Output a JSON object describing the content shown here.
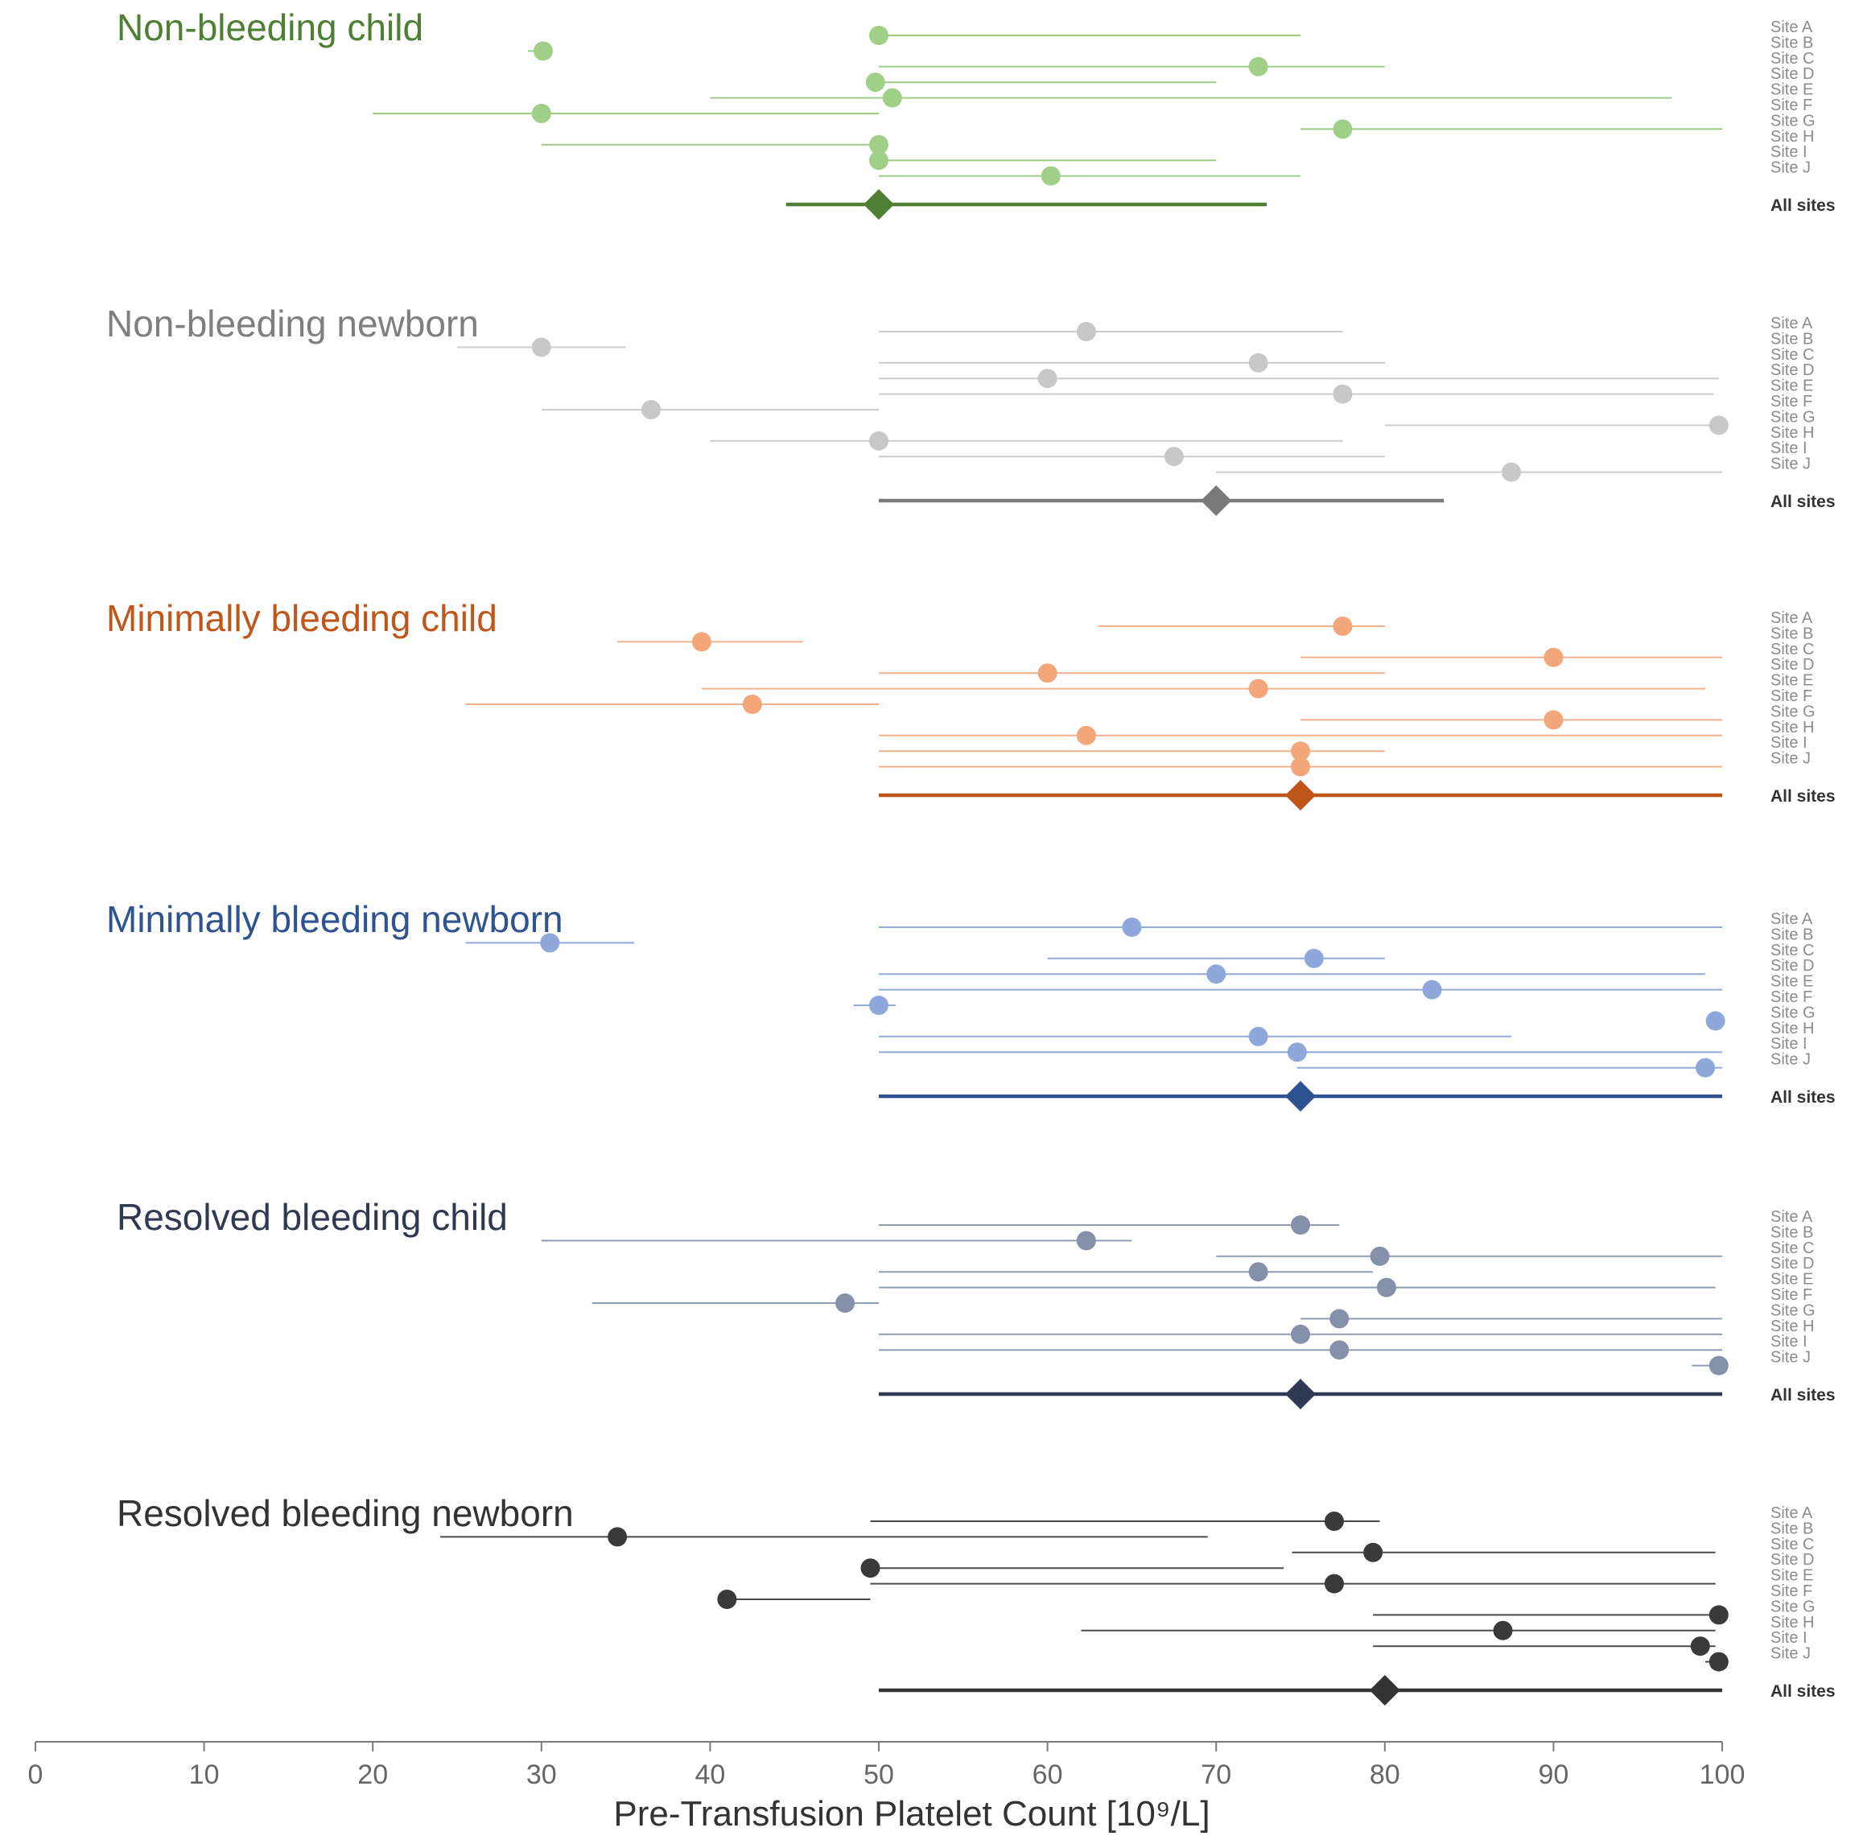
{
  "chart_data": {
    "type": "forest",
    "xlabel": "Pre-Transfusion Platelet Count [10⁹/L]",
    "xlim": [
      0,
      100
    ],
    "xticks": [
      0,
      10,
      20,
      30,
      40,
      50,
      60,
      70,
      80,
      90,
      100
    ],
    "site_labels": [
      "Site A",
      "Site B",
      "Site C",
      "Site D",
      "Site E",
      "Site F",
      "Site G",
      "Site H",
      "Site I",
      "Site J"
    ],
    "summary_label": "All sites",
    "groups": [
      {
        "title": "Non-bleeding child",
        "title_color": "#4e7f34",
        "line_color": "#9dcc85",
        "point_color": "#a0cf88",
        "summary_color": "#4e7f34",
        "sites": [
          {
            "est": 50,
            "lo": 50,
            "hi": 75
          },
          {
            "est": 30.1,
            "lo": 29.2,
            "hi": 30.1
          },
          {
            "est": 72.5,
            "lo": 50,
            "hi": 80
          },
          {
            "est": 49.8,
            "lo": 49.8,
            "hi": 70
          },
          {
            "est": 50.8,
            "lo": 40,
            "hi": 97
          },
          {
            "est": 30,
            "lo": 20,
            "hi": 50
          },
          {
            "est": 77.5,
            "lo": 75,
            "hi": 100
          },
          {
            "est": 50,
            "lo": 30,
            "hi": 50
          },
          {
            "est": 50,
            "lo": 50,
            "hi": 70
          },
          {
            "est": 60.2,
            "lo": 50,
            "hi": 75
          }
        ],
        "summary": {
          "est": 50,
          "lo": 44.5,
          "hi": 73
        }
      },
      {
        "title": "Non-bleeding newborn",
        "title_color": "#7f7f7f",
        "line_color": "#cccccc",
        "point_color": "#c8c8c8",
        "summary_color": "#7a7a7a",
        "sites": [
          {
            "est": 62.3,
            "lo": 50,
            "hi": 77.5
          },
          {
            "est": 30,
            "lo": 25,
            "hi": 35
          },
          {
            "est": 72.5,
            "lo": 50,
            "hi": 80
          },
          {
            "est": 60,
            "lo": 50,
            "hi": 99.8
          },
          {
            "est": 77.5,
            "lo": 50,
            "hi": 99.5
          },
          {
            "est": 36.5,
            "lo": 30,
            "hi": 50
          },
          {
            "est": 99.8,
            "lo": 80,
            "hi": 99.8
          },
          {
            "est": 50,
            "lo": 40,
            "hi": 77.5
          },
          {
            "est": 67.5,
            "lo": 50,
            "hi": 80
          },
          {
            "est": 87.5,
            "lo": 70,
            "hi": 100
          }
        ],
        "summary": {
          "est": 70,
          "lo": 50,
          "hi": 83.5
        }
      },
      {
        "title": "Minimally bleeding child",
        "title_color": "#c0561a",
        "line_color": "#f2b08c",
        "point_color": "#f4a67b",
        "summary_color": "#c0561a",
        "sites": [
          {
            "est": 77.5,
            "lo": 63,
            "hi": 80
          },
          {
            "est": 39.5,
            "lo": 34.5,
            "hi": 45.5
          },
          {
            "est": 90,
            "lo": 75,
            "hi": 100
          },
          {
            "est": 60,
            "lo": 50,
            "hi": 80
          },
          {
            "est": 72.5,
            "lo": 39.5,
            "hi": 99
          },
          {
            "est": 42.5,
            "lo": 25.5,
            "hi": 50
          },
          {
            "est": 90,
            "lo": 75,
            "hi": 100
          },
          {
            "est": 62.3,
            "lo": 50,
            "hi": 100
          },
          {
            "est": 75,
            "lo": 50,
            "hi": 80
          },
          {
            "est": 75,
            "lo": 50,
            "hi": 100
          }
        ],
        "summary": {
          "est": 75,
          "lo": 50,
          "hi": 100
        }
      },
      {
        "title": "Minimally bleeding newborn",
        "title_color": "#2f5391",
        "line_color": "#93a9d8",
        "point_color": "#8ea8dc",
        "summary_color": "#2f5391",
        "sites": [
          {
            "est": 65,
            "lo": 50,
            "hi": 100
          },
          {
            "est": 30.5,
            "lo": 25.5,
            "hi": 35.5
          },
          {
            "est": 75.8,
            "lo": 60,
            "hi": 80
          },
          {
            "est": 70,
            "lo": 50,
            "hi": 99
          },
          {
            "est": 82.8,
            "lo": 50,
            "hi": 100
          },
          {
            "est": 50,
            "lo": 48.5,
            "hi": 51
          },
          {
            "est": 99.6,
            "lo": 99.2,
            "hi": 99.6
          },
          {
            "est": 72.5,
            "lo": 50,
            "hi": 87.5
          },
          {
            "est": 74.8,
            "lo": 50,
            "hi": 100
          },
          {
            "est": 99,
            "lo": 74.8,
            "hi": 100
          }
        ],
        "summary": {
          "est": 75,
          "lo": 50,
          "hi": 100
        }
      },
      {
        "title": "Resolved bleeding child",
        "title_color": "#2f3a52",
        "line_color": "#8f9db3",
        "point_color": "#8591a8",
        "summary_color": "#2f3a52",
        "sites": [
          {
            "est": 75,
            "lo": 50,
            "hi": 77.3
          },
          {
            "est": 62.3,
            "lo": 30,
            "hi": 65
          },
          {
            "est": 79.7,
            "lo": 70,
            "hi": 100
          },
          {
            "est": 72.5,
            "lo": 50,
            "hi": 79.3
          },
          {
            "est": 80.1,
            "lo": 50,
            "hi": 99.6
          },
          {
            "est": 48,
            "lo": 33,
            "hi": 50
          },
          {
            "est": 77.3,
            "lo": 75,
            "hi": 100
          },
          {
            "est": 75,
            "lo": 50,
            "hi": 100
          },
          {
            "est": 77.3,
            "lo": 50,
            "hi": 100
          },
          {
            "est": 99.8,
            "lo": 98.2,
            "hi": 99.8
          }
        ],
        "summary": {
          "est": 75,
          "lo": 50,
          "hi": 100
        }
      },
      {
        "title": "Resolved bleeding newborn",
        "title_color": "#333333",
        "line_color": "#4a4a4a",
        "point_color": "#3a3a3a",
        "summary_color": "#333333",
        "sites": [
          {
            "est": 77,
            "lo": 49.5,
            "hi": 79.7
          },
          {
            "est": 34.5,
            "lo": 24,
            "hi": 69.5
          },
          {
            "est": 79.3,
            "lo": 74.5,
            "hi": 99.6
          },
          {
            "est": 49.5,
            "lo": 49.5,
            "hi": 74
          },
          {
            "est": 77,
            "lo": 49.5,
            "hi": 99.6
          },
          {
            "est": 41,
            "lo": 41,
            "hi": 49.5
          },
          {
            "est": 99.8,
            "lo": 79.3,
            "hi": 99.8
          },
          {
            "est": 87,
            "lo": 62,
            "hi": 99.6
          },
          {
            "est": 98.7,
            "lo": 79.3,
            "hi": 99.6
          },
          {
            "est": 99.8,
            "lo": 99,
            "hi": 99.8
          }
        ],
        "summary": {
          "est": 80,
          "lo": 50,
          "hi": 100
        }
      }
    ]
  }
}
